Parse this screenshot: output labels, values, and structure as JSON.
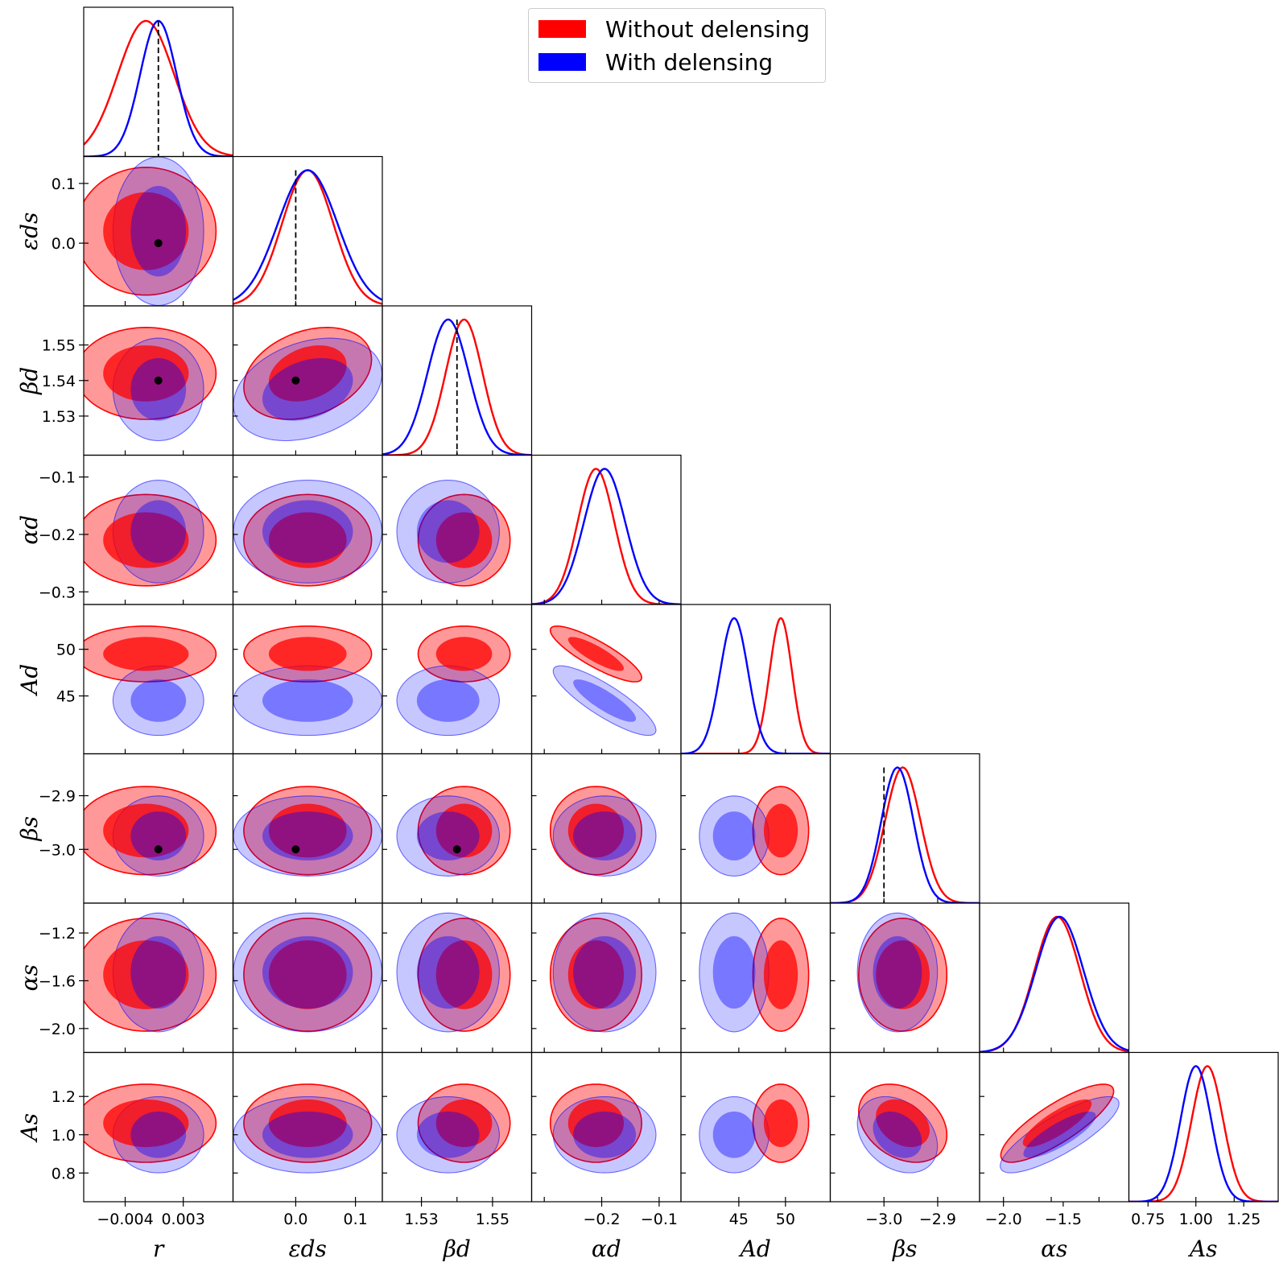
{
  "colors": {
    "without": "#ff0000",
    "with": "#0000ff",
    "overlap": "#800080"
  },
  "legend": {
    "without_label": "Without delensing",
    "with_label": "With delensing"
  },
  "chart_data": {
    "type": "corner",
    "title": "",
    "params": [
      {
        "id": "r",
        "label": "r",
        "range": [
          -0.009,
          0.009
        ],
        "ticks": [
          -0.004,
          0.003
        ],
        "tick_labels": [
          "−0.004",
          "0.003"
        ],
        "truth": 0.0
      },
      {
        "id": "eds",
        "label": "εds",
        "range": [
          -0.105,
          0.145
        ],
        "ticks": [
          0.0,
          0.1
        ],
        "tick_labels": [
          "0.0",
          "0.1"
        ],
        "truth": 0.0
      },
      {
        "id": "betad",
        "label": "βd",
        "range": [
          1.519,
          1.561
        ],
        "ticks": [
          1.53,
          1.54,
          1.55
        ],
        "tick_labels": [
          "1.53",
          "1.54",
          "1.55"
        ],
        "truth": 1.54
      },
      {
        "id": "alphad",
        "label": "αd",
        "range": [
          -0.322,
          -0.062
        ],
        "ticks": [
          -0.3,
          -0.2,
          -0.1
        ],
        "tick_labels": [
          "−0.3",
          "−0.2",
          "−0.1"
        ],
        "truth": null
      },
      {
        "id": "Ad",
        "label": "Ad",
        "range": [
          38.8,
          54.8
        ],
        "ticks": [
          45,
          50
        ],
        "tick_labels": [
          "45",
          "50"
        ],
        "truth": null
      },
      {
        "id": "betas",
        "label": "βs",
        "range": [
          -3.1,
          -2.822
        ],
        "ticks": [
          -3.0,
          -2.9
        ],
        "tick_labels": [
          "−3.0",
          "−2.9"
        ],
        "truth": -3.0
      },
      {
        "id": "alphas",
        "label": "αs",
        "range": [
          -2.2,
          -0.95
        ],
        "ticks": [
          -2.0,
          -1.6,
          -1.2
        ],
        "tick_labels": [
          "−2.0",
          "−1.6",
          "−1.2"
        ],
        "truth": null
      },
      {
        "id": "As",
        "label": "As",
        "range": [
          0.65,
          1.43
        ],
        "ticks": [
          0.8,
          1.0,
          1.2
        ],
        "tick_labels": [
          "0.8",
          "1.0",
          "1.2"
        ],
        "truth": null
      }
    ],
    "x_tick_labels": {
      "r": [
        [
          -0.004,
          "−0.004"
        ],
        [
          0.003,
          "0.003"
        ]
      ],
      "eds": [
        [
          0.0,
          "0.0"
        ],
        [
          0.1,
          "0.1"
        ]
      ],
      "betad": [
        [
          1.53,
          "1.53"
        ],
        [
          1.55,
          "1.55"
        ]
      ],
      "alphad": [
        [
          -0.2,
          "−0.2"
        ],
        [
          -0.1,
          "−0.1"
        ]
      ],
      "Ad": [
        [
          45,
          "45"
        ],
        [
          50,
          "50"
        ]
      ],
      "betas": [
        [
          -3.0,
          "−3.0"
        ],
        [
          -2.9,
          "−2.9"
        ]
      ],
      "alphas": [
        [
          -2.0,
          "−2.0"
        ],
        [
          -1.5,
          "−1.5"
        ]
      ],
      "As": [
        [
          0.75,
          "0.75"
        ],
        [
          1.0,
          "1.00"
        ],
        [
          1.25,
          "1.25"
        ]
      ]
    },
    "series": [
      {
        "name": "Without delensing",
        "color_key": "without",
        "mean": [
          -0.0015,
          0.02,
          1.542,
          -0.21,
          49.5,
          -2.965,
          -1.55,
          1.06
        ],
        "sigma": [
          0.0034,
          0.043,
          0.0052,
          0.032,
          1.2,
          0.033,
          0.19,
          0.082
        ]
      },
      {
        "name": "With delensing",
        "color_key": "with",
        "mean": [
          0.0,
          0.02,
          1.5375,
          -0.195,
          44.5,
          -2.975,
          -1.53,
          1.0
        ],
        "sigma": [
          0.0022,
          0.05,
          0.0058,
          0.036,
          1.5,
          0.03,
          0.2,
          0.08
        ]
      }
    ],
    "correlations": [
      {
        "i": 3,
        "j": 4,
        "rho": -0.85
      },
      {
        "i": 6,
        "j": 7,
        "rho": 0.82
      },
      {
        "i": 5,
        "j": 7,
        "rho": -0.3
      },
      {
        "i": 1,
        "j": 2,
        "rho": 0.3
      }
    ]
  }
}
